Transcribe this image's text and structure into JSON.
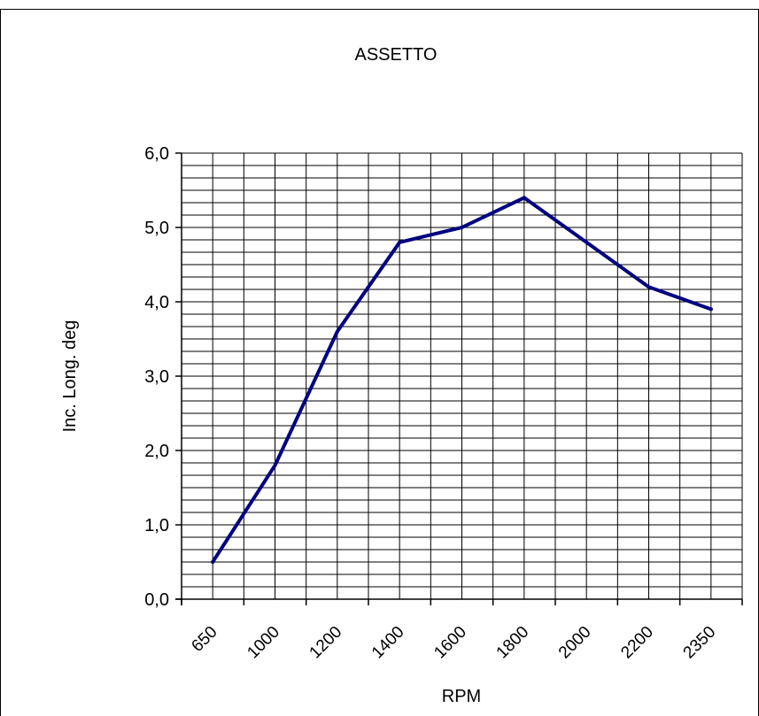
{
  "chart_data": {
    "type": "line",
    "title": "ASSETTO",
    "xlabel": "RPM",
    "ylabel": "Inc. Long. deg",
    "categories": [
      "650",
      "1000",
      "1200",
      "1400",
      "1600",
      "1800",
      "2000",
      "2200",
      "2350"
    ],
    "series": [
      {
        "values": [
          0.5,
          1.8,
          3.6,
          4.8,
          5.0,
          5.4,
          4.8,
          4.2,
          3.9
        ]
      }
    ],
    "ylim": [
      0,
      6
    ],
    "y_ticks": [
      "0,0",
      "1,0",
      "2,0",
      "3,0",
      "4,0",
      "5,0",
      "6,0"
    ],
    "grid": true,
    "legend": "none",
    "colors": {
      "line": "#000080",
      "grid": "#000000",
      "background": "#ffffff"
    }
  }
}
